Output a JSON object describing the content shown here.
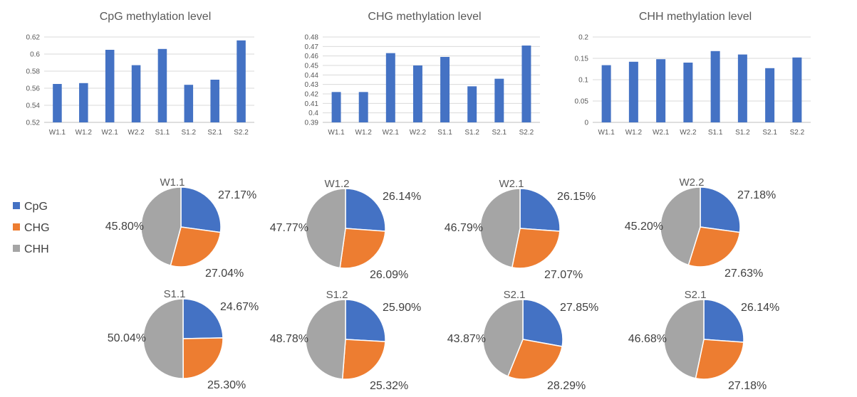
{
  "colors": {
    "CpG": "#4472C4",
    "CHG": "#ED7D31",
    "CHH": "#A5A5A5",
    "bar": "#4472C4"
  },
  "legend": [
    "CpG",
    "CHG",
    "CHH"
  ],
  "chart_data": [
    {
      "type": "bar",
      "title": "CpG methylation level",
      "categories": [
        "W1.1",
        "W1.2",
        "W2.1",
        "W2.2",
        "S1.1",
        "S1.2",
        "S2.1",
        "S2.2"
      ],
      "values": [
        0.565,
        0.566,
        0.605,
        0.587,
        0.606,
        0.564,
        0.57,
        0.616
      ],
      "ylim": [
        0.52,
        0.62
      ],
      "yticks": [
        "0.52",
        "0.54",
        "0.56",
        "0.58",
        "0.6",
        "0.62"
      ],
      "grid": true
    },
    {
      "type": "bar",
      "title": "CHG methylation level",
      "categories": [
        "W1.1",
        "W1.2",
        "W2.1",
        "W2.2",
        "S1.1",
        "S1.2",
        "S2.1",
        "S2.2"
      ],
      "values": [
        0.422,
        0.422,
        0.463,
        0.45,
        0.459,
        0.428,
        0.436,
        0.471
      ],
      "ylim": [
        0.39,
        0.48
      ],
      "yticks": [
        "0.39",
        "0.4",
        "0.41",
        "0.42",
        "0.43",
        "0.44",
        "0.45",
        "0.46",
        "0.47",
        "0.48"
      ],
      "grid": true
    },
    {
      "type": "bar",
      "title": "CHH methylation level",
      "categories": [
        "W1.1",
        "W1.2",
        "W2.1",
        "W2.2",
        "S1.1",
        "S1.2",
        "S2.1",
        "S2.2"
      ],
      "values": [
        0.134,
        0.142,
        0.148,
        0.14,
        0.167,
        0.159,
        0.127,
        0.152
      ],
      "ylim": [
        0,
        0.2
      ],
      "yticks": [
        "0",
        "0.05",
        "0.1",
        "0.15",
        "0.2"
      ],
      "grid": true
    },
    {
      "type": "pie",
      "title": "W1.1",
      "labels": [
        "CpG",
        "CHG",
        "CHH"
      ],
      "values": [
        27.17,
        27.04,
        45.8
      ],
      "value_labels": [
        "27.17%",
        "27.04%",
        "45.80%"
      ]
    },
    {
      "type": "pie",
      "title": "W1.2",
      "labels": [
        "CpG",
        "CHG",
        "CHH"
      ],
      "values": [
        26.14,
        26.09,
        47.77
      ],
      "value_labels": [
        "26.14%",
        "26.09%",
        "47.77%"
      ]
    },
    {
      "type": "pie",
      "title": "W2.1",
      "labels": [
        "CpG",
        "CHG",
        "CHH"
      ],
      "values": [
        26.15,
        27.07,
        46.79
      ],
      "value_labels": [
        "26.15%",
        "27.07%",
        "46.79%"
      ]
    },
    {
      "type": "pie",
      "title": "W2.2",
      "labels": [
        "CpG",
        "CHG",
        "CHH"
      ],
      "values": [
        27.18,
        27.63,
        45.2
      ],
      "value_labels": [
        "27.18%",
        "27.63%",
        "45.20%"
      ]
    },
    {
      "type": "pie",
      "title": "S1.1",
      "labels": [
        "CpG",
        "CHG",
        "CHH"
      ],
      "values": [
        24.67,
        25.3,
        50.04
      ],
      "value_labels": [
        "24.67%",
        "25.30%",
        "50.04%"
      ]
    },
    {
      "type": "pie",
      "title": "S1.2",
      "labels": [
        "CpG",
        "CHG",
        "CHH"
      ],
      "values": [
        25.9,
        25.32,
        48.78
      ],
      "value_labels": [
        "25.90%",
        "25.32%",
        "48.78%"
      ]
    },
    {
      "type": "pie",
      "title": "S2.1",
      "labels": [
        "CpG",
        "CHG",
        "CHH"
      ],
      "values": [
        27.85,
        28.29,
        43.87
      ],
      "value_labels": [
        "27.85%",
        "28.29%",
        "43.87%"
      ]
    },
    {
      "type": "pie",
      "title": "S2.1",
      "labels": [
        "CpG",
        "CHG",
        "CHH"
      ],
      "values": [
        26.14,
        27.18,
        46.68
      ],
      "value_labels": [
        "26.14%",
        "27.18%",
        "46.68%"
      ]
    }
  ]
}
